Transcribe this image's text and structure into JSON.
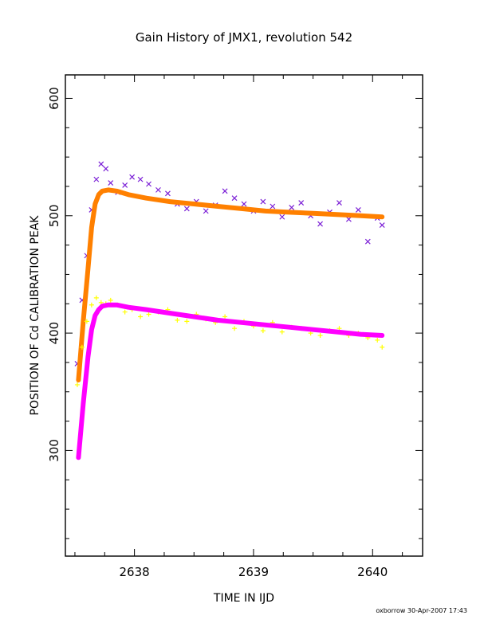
{
  "chart_data": {
    "type": "scatter",
    "title": "Gain History of JMX1, revolution 542",
    "xlabel": "TIME IN IJD",
    "ylabel": "POSITION OF Cd CALIBRATION PEAK",
    "xlim": [
      2637.42,
      2640.42
    ],
    "ylim": [
      210,
      620
    ],
    "xticks": [
      2638,
      2639,
      2640
    ],
    "xtick_labels": [
      "2638",
      "2639",
      "2640"
    ],
    "yticks": [
      300,
      400,
      500,
      600
    ],
    "ytick_labels": [
      "300",
      "400",
      "500",
      "600"
    ],
    "grid": false,
    "legend": "none",
    "footer": "oxborrow 30-Apr-2007 17:43",
    "series": [
      {
        "marker": "x",
        "color": "#7b1fd6",
        "x": [
          2637.52,
          2637.56,
          2637.6,
          2637.64,
          2637.68,
          2637.72,
          2637.76,
          2637.8,
          2637.86,
          2637.92,
          2637.98,
          2638.05,
          2638.12,
          2638.2,
          2638.28,
          2638.36,
          2638.44,
          2638.52,
          2638.6,
          2638.68,
          2638.76,
          2638.84,
          2638.92,
          2639.0,
          2639.08,
          2639.16,
          2639.24,
          2639.32,
          2639.4,
          2639.48,
          2639.56,
          2639.64,
          2639.72,
          2639.8,
          2639.88,
          2639.96,
          2640.04,
          2640.08
        ],
        "y": [
          374,
          428,
          466,
          505,
          531,
          544,
          540,
          528,
          520,
          526,
          533,
          531,
          527,
          522,
          519,
          510,
          506,
          512,
          504,
          509,
          521,
          515,
          510,
          504,
          512,
          508,
          499,
          507,
          511,
          500,
          493,
          503,
          511,
          497,
          505,
          478,
          498,
          492
        ]
      },
      {
        "marker": "line",
        "color": "#ff8000",
        "x": [
          2637.53,
          2637.57,
          2637.61,
          2637.64,
          2637.67,
          2637.7,
          2637.73,
          2637.78,
          2637.85,
          2637.95,
          2638.1,
          2638.3,
          2638.5,
          2638.7,
          2638.9,
          2639.1,
          2639.3,
          2639.5,
          2639.7,
          2639.9,
          2640.08
        ],
        "y": [
          360,
          410,
          455,
          490,
          510,
          518,
          521,
          522,
          521,
          518,
          515,
          512,
          510,
          508,
          506,
          504,
          503,
          502,
          501,
          500,
          499
        ]
      },
      {
        "marker": "+",
        "color": "#ffff00",
        "x": [
          2637.52,
          2637.56,
          2637.6,
          2637.64,
          2637.68,
          2637.72,
          2637.76,
          2637.8,
          2637.86,
          2637.92,
          2637.98,
          2638.05,
          2638.12,
          2638.2,
          2638.28,
          2638.36,
          2638.44,
          2638.52,
          2638.6,
          2638.68,
          2638.76,
          2638.84,
          2638.92,
          2639.0,
          2639.08,
          2639.16,
          2639.24,
          2639.32,
          2639.4,
          2639.48,
          2639.56,
          2639.64,
          2639.72,
          2639.8,
          2639.88,
          2639.96,
          2640.04,
          2640.08
        ],
        "y": [
          356,
          388,
          410,
          424,
          430,
          426,
          425,
          428,
          424,
          418,
          420,
          414,
          416,
          418,
          420,
          411,
          410,
          416,
          412,
          409,
          414,
          404,
          410,
          406,
          402,
          409,
          401,
          405,
          404,
          400,
          398,
          402,
          404,
          398,
          400,
          396,
          394,
          388
        ]
      },
      {
        "marker": "line",
        "color": "#ff00ff",
        "x": [
          2637.53,
          2637.57,
          2637.61,
          2637.64,
          2637.67,
          2637.7,
          2637.73,
          2637.78,
          2637.85,
          2637.95,
          2638.1,
          2638.3,
          2638.5,
          2638.7,
          2638.9,
          2639.1,
          2639.3,
          2639.5,
          2639.7,
          2639.9,
          2640.08
        ],
        "y": [
          294,
          340,
          380,
          403,
          415,
          420,
          423,
          424,
          424,
          422,
          420,
          417,
          414,
          411,
          409,
          407,
          405,
          403,
          401,
          399,
          398
        ]
      }
    ]
  }
}
